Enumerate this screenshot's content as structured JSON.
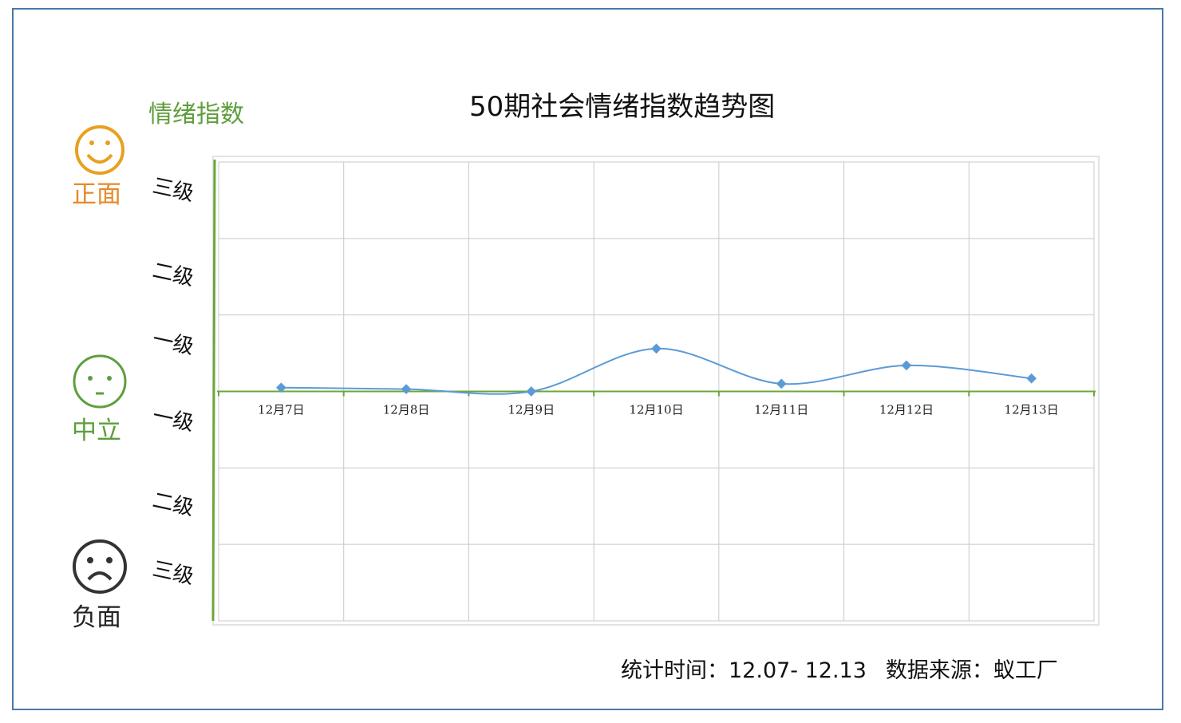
{
  "chart_data": {
    "type": "line",
    "title": "50期社会情绪指数趋势图",
    "ylabel": "情绪指数",
    "categories": [
      "12月7日",
      "12月8日",
      "12月9日",
      "12月10日",
      "12月11日",
      "12月12日",
      "12月13日"
    ],
    "series": [
      {
        "values": [
          0.05,
          0.03,
          0.0,
          0.56,
          0.1,
          0.34,
          0.17
        ],
        "color": "#5b9bd5"
      }
    ],
    "ylim": [
      -3,
      3
    ],
    "y_tick_labels": [
      "三级",
      "二级",
      "一级",
      "一级",
      "二级",
      "三级"
    ],
    "sentiment_labels": {
      "positive": "正面",
      "neutral": "中立",
      "negative": "负面"
    },
    "sentiment_icons": [
      "smile-icon",
      "neutral-face-icon",
      "frown-icon"
    ],
    "colors": {
      "positive": "#e8a020",
      "neutral": "#5e9e3c",
      "negative": "#333333",
      "line": "#5b9bd5",
      "axis": "#6aa83a",
      "grid": "#c8c8c8"
    },
    "grid": true,
    "legend": "none"
  },
  "footer": {
    "stat_label": "统计时间：",
    "stat_value": "12.07- 12.13",
    "source_label": "数据来源：",
    "source_value": "蚁工厂"
  }
}
